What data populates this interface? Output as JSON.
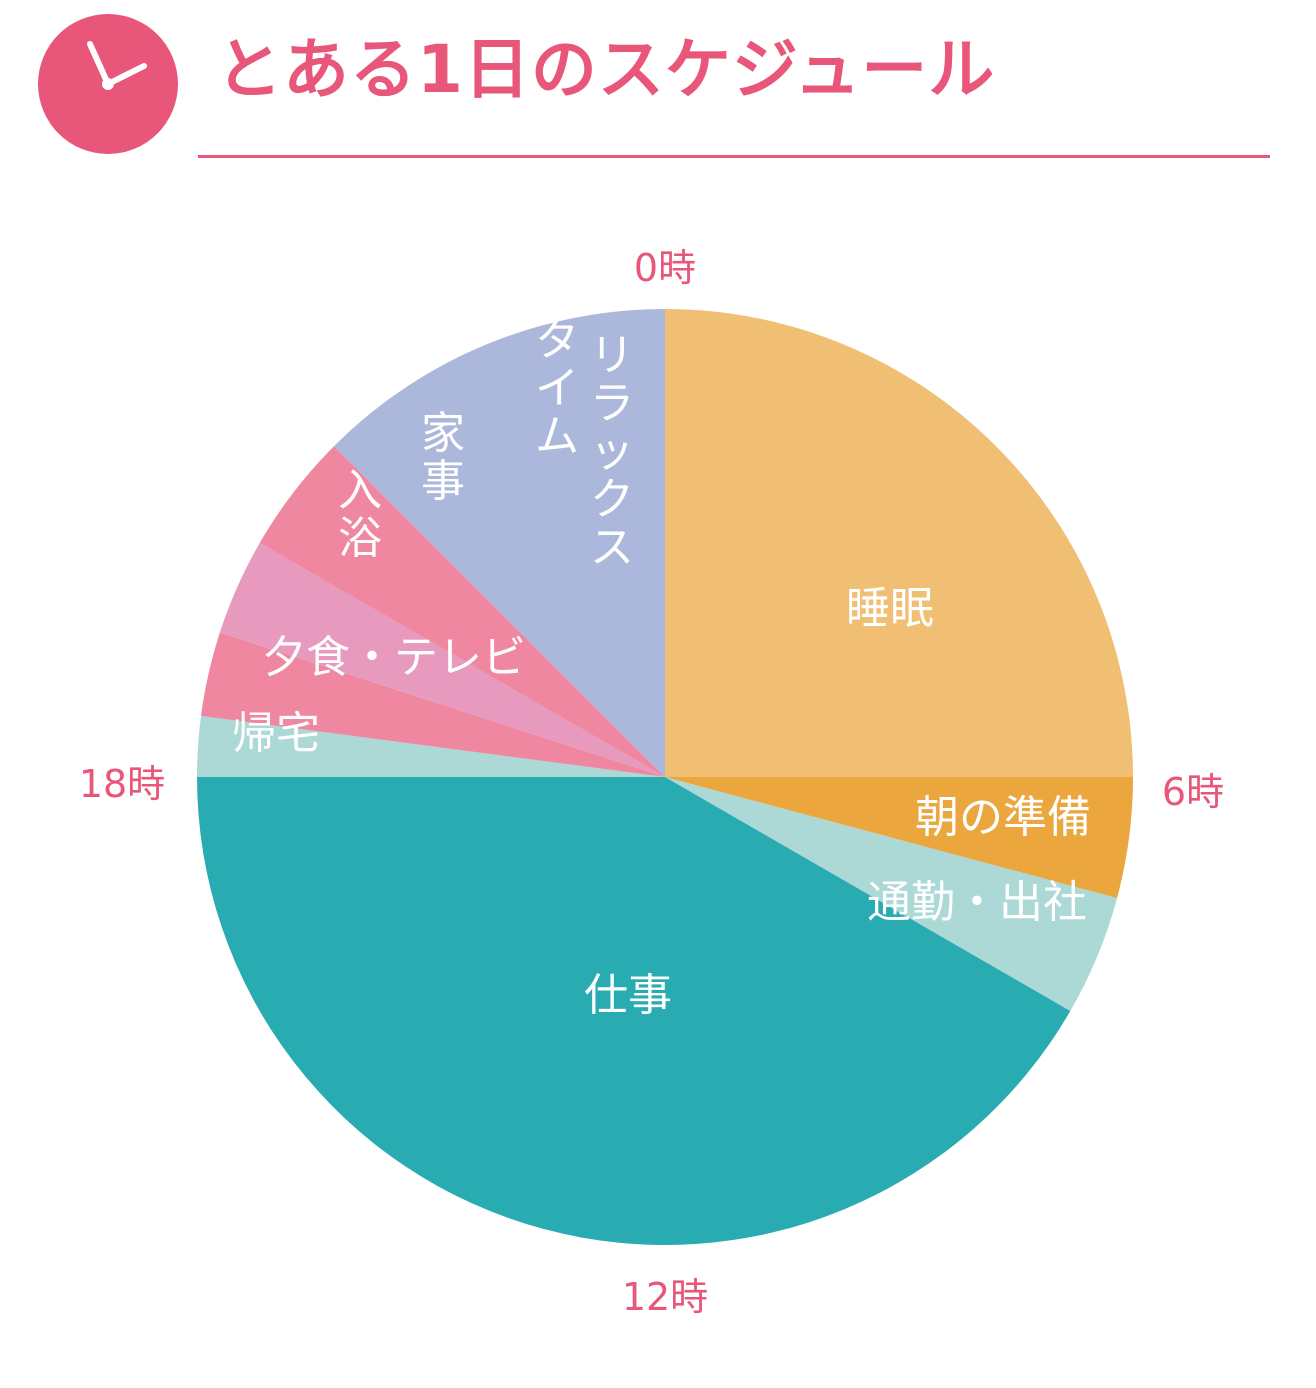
{
  "title": "とある1日のスケジュール",
  "colors": {
    "accent": "#e8567a"
  },
  "icon": "clock-icon",
  "chart_data": {
    "type": "pie",
    "title": "とある1日のスケジュール",
    "unit": "hours",
    "start_angle": "top, clockwise",
    "hour_labels": [
      {
        "text": "0時",
        "hour": 0
      },
      {
        "text": "6時",
        "hour": 6
      },
      {
        "text": "12時",
        "hour": 12
      },
      {
        "text": "18時",
        "hour": 18
      }
    ],
    "slices": [
      {
        "label": "睡眠",
        "start": 0,
        "hours": 6,
        "color": "#f0bf73",
        "orientation": "horizontal"
      },
      {
        "label": "朝の準備",
        "start": 6,
        "hours": 1,
        "color": "#eba63e",
        "orientation": "horizontal"
      },
      {
        "label": "通勤・出社",
        "start": 7,
        "hours": 1,
        "color": "#acd8d6",
        "orientation": "horizontal"
      },
      {
        "label": "仕事",
        "start": 8,
        "hours": 10,
        "color": "#29abb2",
        "orientation": "horizontal"
      },
      {
        "label": "帰宅",
        "start": 18,
        "hours": 0.5,
        "color": "#acd8d6",
        "orientation": "horizontal"
      },
      {
        "label": "夕食・テレビ",
        "start": 18.5,
        "hours": 0.7,
        "color": "#ef87a0",
        "orientation": "horizontal"
      },
      {
        "label": "入浴",
        "start": 19.2,
        "hours": 0.8,
        "color": "#e79abe",
        "orientation": "vertical"
      },
      {
        "label": "家事",
        "start": 20,
        "hours": 1,
        "color": "#ef87a0",
        "orientation": "vertical"
      },
      {
        "label": "リラックスタイム",
        "lines": [
          "リラックス",
          "タイム"
        ],
        "start": 21,
        "hours": 3,
        "color": "#abb8dc",
        "orientation": "vertical"
      }
    ]
  }
}
